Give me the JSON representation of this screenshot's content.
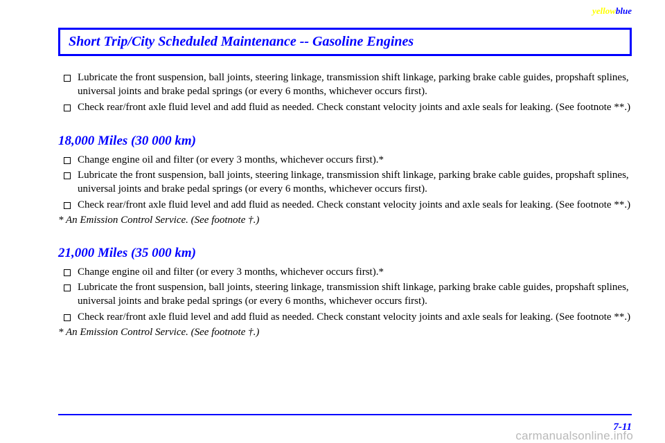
{
  "header": {
    "yellow": "yellow",
    "blue": "blue"
  },
  "title": "Short Trip/City Scheduled Maintenance -- Gasoline Engines",
  "sections": [
    {
      "preItems": [
        "Lubricate the front suspension, ball joints, steering linkage, transmission shift linkage, parking brake cable guides, propshaft splines, universal joints and brake pedal springs (or every 6 months, whichever occurs first).",
        "Check rear/front axle fluid level and add fluid as needed. Check constant velocity joints and axle seals for leaking. (See footnote **.)"
      ],
      "heading": "18,000 Miles (30 000 km)",
      "items": [
        "Change engine oil and filter (or every 3 months, whichever occurs first).*",
        "Lubricate the front suspension, ball joints, steering linkage, transmission shift linkage, parking brake cable guides, propshaft splines, universal joints and brake pedal springs (or every 6 months, whichever occurs first).",
        "Check rear/front axle fluid level and add fluid as needed. Check constant velocity joints and axle seals for leaking. (See footnote **.)"
      ],
      "note": "* An Emission Control Service. (See footnote †.)"
    },
    {
      "heading": "21,000 Miles (35 000 km)",
      "items": [
        "Change engine oil and filter (or every 3 months, whichever occurs first).*",
        "Lubricate the front suspension, ball joints, steering linkage, transmission shift linkage, parking brake cable guides, propshaft splines, universal joints and brake pedal springs (or every 6 months, whichever occurs first).",
        "Check rear/front axle fluid level and add fluid as needed. Check constant velocity joints and axle seals for leaking. (See footnote **.)"
      ],
      "note": "* An Emission Control Service. (See footnote †.)"
    }
  ],
  "footer": {
    "pageNumber": "7-11",
    "watermark": "carmanualsonline.info"
  },
  "colors": {
    "blue": "#0000ff",
    "yellow": "#ffff00",
    "text": "#000000",
    "watermark": "#b9b9b9",
    "background": "#ffffff"
  }
}
